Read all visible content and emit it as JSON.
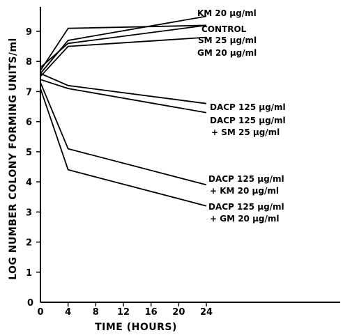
{
  "chart_data": {
    "type": "line",
    "xlabel": "TIME (HOURS)",
    "ylabel": "LOG NUMBER COLONY FORMING UNITS/ml",
    "xlim": [
      0,
      24
    ],
    "ylim": [
      0,
      9
    ],
    "x_ticks": [
      "0",
      "4",
      "8",
      "12",
      "16",
      "20",
      "24"
    ],
    "y_ticks": [
      "1",
      "2",
      "3",
      "4",
      "5",
      "6",
      "7",
      "8",
      "9"
    ],
    "series": [
      {
        "name": "KM 20 μg/ml",
        "x": [
          0,
          4,
          24
        ],
        "y": [
          7.6,
          8.7,
          9.5
        ]
      },
      {
        "name": "CONTROL",
        "x": [
          0,
          4,
          24
        ],
        "y": [
          7.7,
          9.1,
          9.2
        ]
      },
      {
        "name": "SM 25 μg/ml",
        "x": [
          0,
          4,
          24
        ],
        "y": [
          7.8,
          8.6,
          9.2
        ]
      },
      {
        "name": "GM 20 μg/ml",
        "x": [
          0,
          4,
          24
        ],
        "y": [
          7.5,
          8.5,
          8.8
        ]
      },
      {
        "name": "DACP 125 μg/ml",
        "x": [
          0,
          4,
          24
        ],
        "y": [
          7.6,
          7.2,
          6.6
        ]
      },
      {
        "name": "DACP 125 μg/ml + SM 25 μg/ml",
        "x": [
          0,
          4,
          24
        ],
        "y": [
          7.4,
          7.1,
          6.3
        ]
      },
      {
        "name": "DACP 125 μg/ml + KM 20 μg/ml",
        "x": [
          0,
          4,
          24
        ],
        "y": [
          7.3,
          5.1,
          3.9
        ]
      },
      {
        "name": "DACP 125 μg/ml + GM 20 μg/ml",
        "x": [
          0,
          4,
          24
        ],
        "y": [
          7.1,
          4.4,
          3.2
        ]
      }
    ],
    "labels": [
      {
        "lines": [
          "KM 20 μg/ml"
        ]
      },
      {
        "lines": [
          "CONTROL"
        ]
      },
      {
        "lines": [
          "SM 25 μg/ml"
        ]
      },
      {
        "lines": [
          "GM 20 μg/ml"
        ]
      },
      {
        "lines": [
          "DACP 125 μg/ml"
        ]
      },
      {
        "lines": [
          "DACP 125 μg/ml",
          "+ SM 25 μg/ml"
        ]
      },
      {
        "lines": [
          "DACP 125 μg/ml",
          "+ KM 20 μg/ml"
        ]
      },
      {
        "lines": [
          "DACP 125 μg/ml",
          "+ GM 20 μg/ml"
        ]
      }
    ],
    "grid": false,
    "legend": "none"
  }
}
